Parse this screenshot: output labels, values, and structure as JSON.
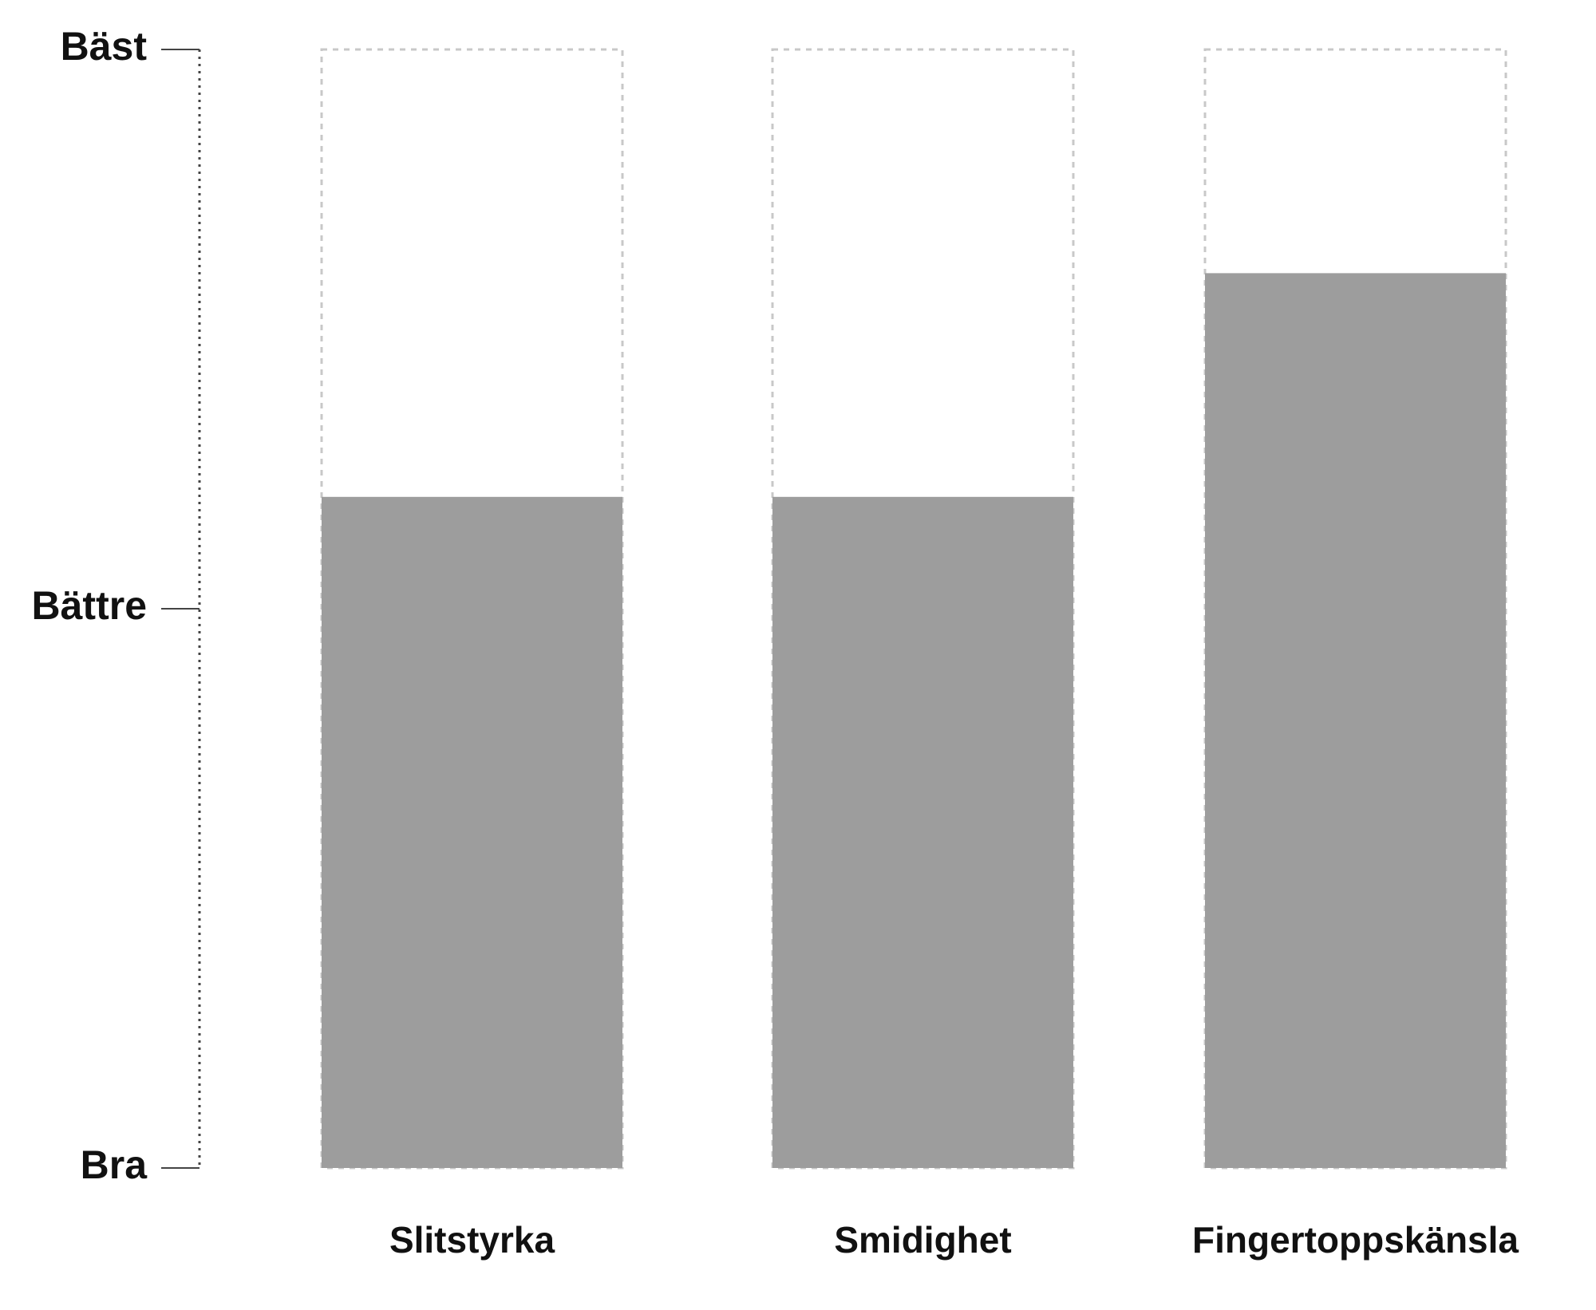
{
  "chart_data": {
    "type": "bar",
    "title": "",
    "xlabel": "",
    "ylabel": "",
    "y_ticks": [
      {
        "value": 0,
        "label": "Bra"
      },
      {
        "value": 1,
        "label": "Bättre"
      },
      {
        "value": 2,
        "label": "Bäst"
      }
    ],
    "ylim": [
      0,
      2
    ],
    "categories": [
      "Slitstyrka",
      "Smidighet",
      "Fingertoppskänsla"
    ],
    "values": [
      1.2,
      1.2,
      1.6
    ],
    "max_value": 2,
    "grid": false,
    "legend": "none",
    "colors": {
      "bar_fill": "#9d9d9d",
      "bar_outline": "#c8c8c8",
      "axis": "#444444",
      "text": "#111111"
    }
  }
}
